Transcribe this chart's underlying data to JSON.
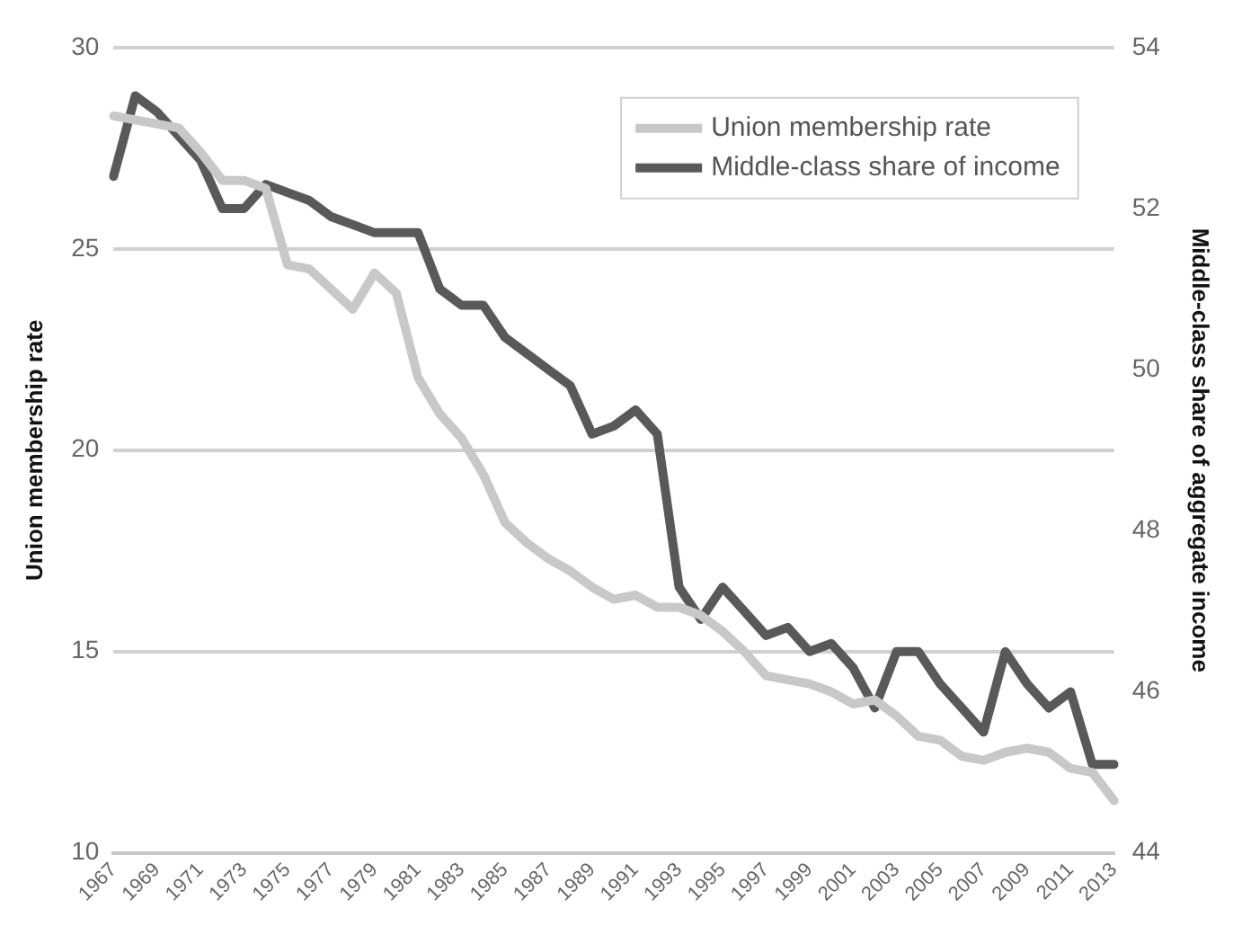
{
  "chart_data": {
    "type": "line",
    "xlabel": null,
    "ylabel": "Union membership rate",
    "y2label": "Middle-class share of aggregate income",
    "categories": [
      "1967",
      null,
      "1969",
      null,
      "1971",
      null,
      "1973",
      null,
      "1975",
      null,
      "1977",
      null,
      "1979",
      null,
      "1981",
      null,
      "1983",
      null,
      "1985",
      null,
      "1987",
      null,
      "1989",
      null,
      "1991",
      null,
      "1993",
      null,
      "1995",
      null,
      "1997",
      null,
      "1999",
      null,
      "2001",
      null,
      "2003",
      null,
      "2005",
      null,
      "2007",
      null,
      "2009",
      null,
      "2011",
      null,
      "2013"
    ],
    "series": [
      {
        "name": "Union membership rate",
        "color": "#c8c8c8",
        "values": [
          28.3,
          28.2,
          28.1,
          28.0,
          27.4,
          26.7,
          26.7,
          26.5,
          24.6,
          24.5,
          24.0,
          23.5,
          24.4,
          23.9,
          21.8,
          20.9,
          20.3,
          19.4,
          18.2,
          17.7,
          17.3,
          17.0,
          16.6,
          16.3,
          16.4,
          16.1,
          16.1,
          15.9,
          15.5,
          15.0,
          14.4,
          14.3,
          14.2,
          14.0,
          13.7,
          13.8,
          13.4,
          12.9,
          12.8,
          12.4,
          12.3,
          12.5,
          12.6,
          12.5,
          12.1,
          12.0,
          11.3
        ]
      },
      {
        "name": "Middle-class share of income",
        "color": "#595959",
        "axis": "y2",
        "values": [
          52.4,
          53.4,
          53.2,
          52.9,
          52.6,
          52.0,
          52.0,
          52.3,
          52.2,
          52.1,
          51.9,
          51.8,
          51.7,
          51.7,
          51.7,
          51.0,
          50.8,
          50.8,
          50.4,
          50.2,
          50.0,
          49.8,
          49.2,
          49.3,
          49.5,
          49.2,
          47.3,
          46.9,
          47.3,
          47.0,
          46.7,
          46.8,
          46.5,
          46.6,
          46.3,
          45.8,
          46.5,
          46.5,
          46.1,
          45.8,
          45.5,
          46.5,
          46.1,
          45.8,
          46.0,
          45.1,
          45.1
        ]
      }
    ],
    "ylim": [
      10,
      30
    ],
    "yticks": [
      10,
      15,
      20,
      25,
      30
    ],
    "y2lim": [
      44,
      54
    ],
    "y2ticks": [
      44,
      46,
      48,
      50,
      52,
      54
    ],
    "grid": "y",
    "legend": "top right",
    "marker": "none",
    "line_style": "solid"
  }
}
